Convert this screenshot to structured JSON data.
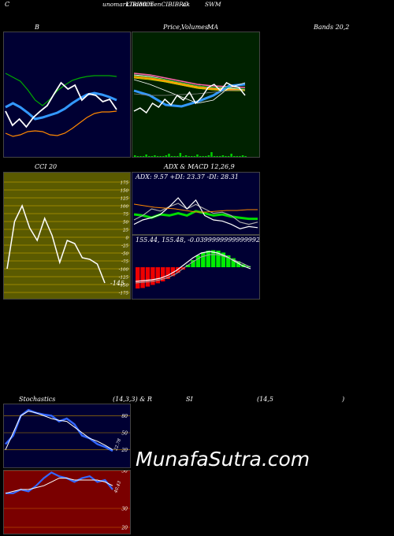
{
  "header": {
    "c_letter": "C",
    "overlap_a": "unomarkTiddilimenCIBIBRO",
    "overlap_b": "LIBIMCT",
    "overlap_c": "ak",
    "right_code": "SWM"
  },
  "titles": {
    "bands_left": "B",
    "bands_mid": "Price,",
    "bands_mid2": "Volumes",
    "bands_ma": "MA",
    "bands_right": "Bands 20,2",
    "cci": "CCI 20",
    "adx_macd": "ADX  & MACD 12,26,9",
    "stoch_left": "Stochastics",
    "stoch_params": "(14,3,3) & R",
    "rsi": "SI",
    "rsi_params": "(14,5",
    "rsi_close": ")"
  },
  "watermark": "MunafaSutra.com",
  "colors": {
    "navy": "#000033",
    "dark_green": "#002200",
    "olive": "#5a5a00",
    "dark_red": "#7a0000"
  },
  "chart_data": [
    {
      "id": "bollinger",
      "type": "line",
      "series": [
        {
          "color": "#00aa00",
          "values": [
            92,
            97,
            102,
            113,
            126,
            133,
            125,
            114,
            107,
            101,
            98,
            96,
            95,
            95,
            95,
            96
          ]
        },
        {
          "color": "#ff8800",
          "values": [
            168,
            172,
            170,
            166,
            165,
            166,
            170,
            171,
            168,
            162,
            155,
            148,
            143,
            141,
            141,
            140
          ]
        },
        {
          "color": "#3399ff",
          "values": [
            135,
            130,
            135,
            142,
            150,
            148,
            145,
            142,
            137,
            130,
            124,
            119,
            117,
            119,
            122,
            126
          ]
        },
        {
          "color": "#ffffff",
          "values": [
            140,
            158,
            150,
            160,
            148,
            140,
            133,
            118,
            104,
            112,
            107,
            126,
            118,
            120,
            128,
            125,
            138
          ]
        }
      ]
    },
    {
      "id": "cci",
      "type": "line",
      "yticks": [
        "175",
        "150",
        "125",
        "100",
        "75",
        "50",
        "25",
        "0",
        "-25",
        "-50",
        "-75",
        "-100",
        "-125",
        "-150",
        "-175"
      ],
      "last_label": "-145",
      "values": [
        -100,
        50,
        100,
        30,
        -10,
        60,
        5,
        -80,
        -10,
        -20,
        -65,
        -70,
        -85,
        -145
      ]
    },
    {
      "id": "adx",
      "type": "line",
      "label": "ADX: 9.57  +DI: 23.37  -DI: 28.31",
      "series": [
        {
          "name": "ADX",
          "color": "#00dd00",
          "values": [
            15,
            14,
            12,
            15,
            14,
            16,
            14,
            18,
            16,
            14,
            15,
            13,
            12,
            11,
            11
          ]
        },
        {
          "name": "+DI",
          "color": "#aaaaaa",
          "values": [
            10,
            14,
            20,
            18,
            22,
            25,
            20,
            24,
            20,
            16,
            17,
            14,
            8,
            6,
            8
          ]
        },
        {
          "name": "-DI",
          "color": "#ffffff",
          "values": [
            6,
            10,
            12,
            15,
            22,
            30,
            20,
            28,
            14,
            10,
            9,
            6,
            2,
            4,
            3
          ]
        }
      ]
    },
    {
      "id": "macd",
      "type": "bar",
      "label": "155.44,  155.48,  -0.0399999999999992",
      "histogram": [
        -0.9,
        -0.88,
        -0.82,
        -0.75,
        -0.68,
        -0.6,
        -0.5,
        -0.38,
        -0.24,
        -0.1,
        0.1,
        0.3,
        0.5,
        0.62,
        0.7,
        0.72,
        0.7,
        0.62,
        0.5,
        0.38,
        0.25,
        0.12,
        0.05
      ]
    },
    {
      "id": "stochastics",
      "type": "line",
      "yticks": [
        "80",
        "50",
        "20"
      ],
      "last_label": "22.78",
      "series": [
        {
          "name": "%K",
          "color": "#3366ff",
          "values": [
            30,
            45,
            80,
            90,
            85,
            82,
            80,
            70,
            75,
            65,
            45,
            40,
            30,
            25,
            18
          ]
        },
        {
          "name": "%D",
          "color": "#ffffff",
          "values": [
            20,
            50,
            80,
            88,
            85,
            80,
            75,
            72,
            70,
            60,
            50,
            40,
            35,
            28,
            20
          ]
        }
      ]
    },
    {
      "id": "rsi",
      "type": "line",
      "yticks": [
        "50",
        "30",
        "20"
      ],
      "last_label": "40.43",
      "series": [
        {
          "name": "RSI",
          "color": "#3366ff",
          "values": [
            38,
            38,
            40,
            39,
            42,
            46,
            49,
            47,
            46,
            44,
            46,
            47,
            44,
            45,
            40
          ]
        },
        {
          "name": "avg",
          "color": "#ffffff",
          "values": [
            38,
            39,
            40,
            40,
            41,
            42,
            44,
            46,
            46,
            45,
            45,
            45,
            45,
            44,
            42
          ]
        }
      ]
    }
  ]
}
